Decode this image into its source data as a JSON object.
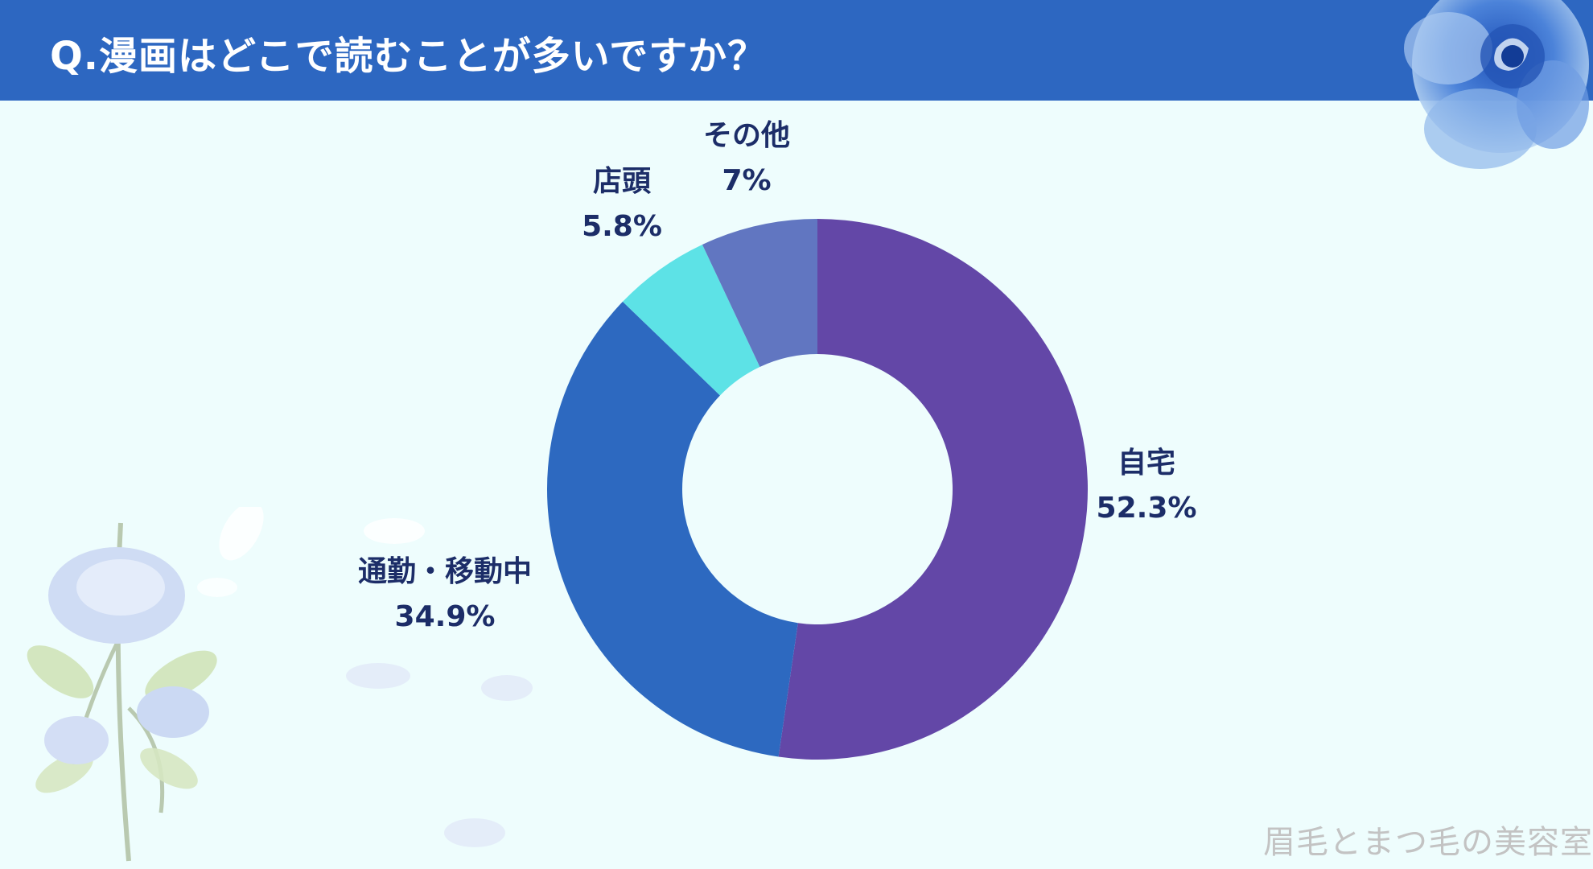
{
  "header": {
    "title": "Q.漫画はどこで読むことが多いですか？"
  },
  "watermark": "眉毛とまつ毛の美容室",
  "colors": {
    "header": "#2d67c1",
    "background": "#eefdfd",
    "label": "#1c2d68"
  },
  "chart_data": {
    "type": "donut",
    "title": "Q.漫画はどこで読むことが多いですか？",
    "slices": [
      {
        "label": "自宅",
        "value": 52.3,
        "display": "52.3%",
        "color": "#6347a7"
      },
      {
        "label": "通勤・移動中",
        "value": 34.9,
        "display": "34.9%",
        "color": "#2d69c0"
      },
      {
        "label": "店頭",
        "value": 5.8,
        "display": "5.8%",
        "color": "#5de2e6"
      },
      {
        "label": "その他",
        "value": 7,
        "display": "7%",
        "color": "#6176c1"
      }
    ]
  }
}
